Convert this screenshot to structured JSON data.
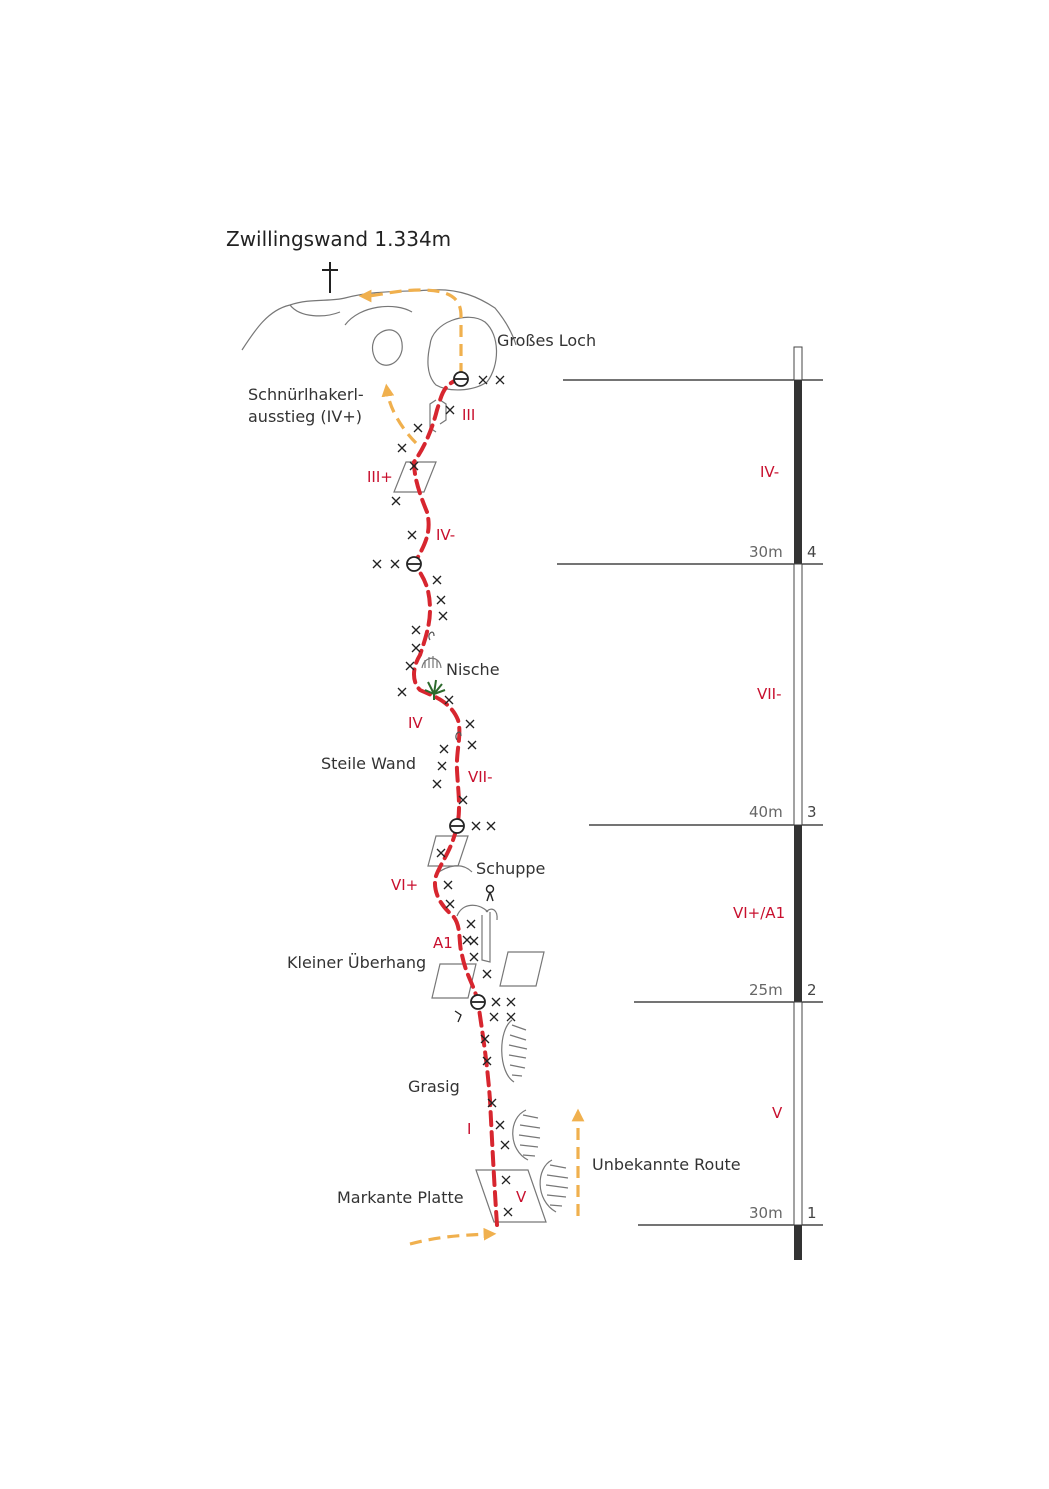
{
  "title": "Zwillingswand 1.334m",
  "colors": {
    "route": "#d7262f",
    "variant": "#f0b04e",
    "grade": "#c8102e",
    "rock": "#777777",
    "bolt": "#222222"
  },
  "icons": [
    "summit-cross-icon",
    "belay-station-icon",
    "bolt-icon",
    "piton-icon",
    "tree-icon"
  ],
  "features": {
    "grosses_loch": "Großes Loch",
    "schnuerl_line1": "Schnürlhakerl-",
    "schnuerl_line2": "ausstieg (IV+)",
    "nische": "Nische",
    "steile_wand": "Steile Wand",
    "schuppe": "Schuppe",
    "kleiner_ueberhang": "Kleiner Überhang",
    "grasig": "Grasig",
    "unbekannte_route": "Unbekannte Route",
    "markante_platte": "Markante Platte"
  },
  "route_grades": {
    "g_III": "III",
    "g_IIIplus": "III+",
    "g_IVminus": "IV-",
    "g_IV": "IV",
    "g_VIIminus": "VII-",
    "g_VIplus": "VI+",
    "g_A1": "A1",
    "g_I": "I",
    "g_V": "V"
  },
  "pitches": [
    {
      "number": "4",
      "length": "30m",
      "grade": "IV-"
    },
    {
      "number": "3",
      "length": "40m",
      "grade": "VII-"
    },
    {
      "number": "2",
      "length": "25m",
      "grade": "VI+/A1"
    },
    {
      "number": "1",
      "length": "30m",
      "grade": "V"
    }
  ]
}
